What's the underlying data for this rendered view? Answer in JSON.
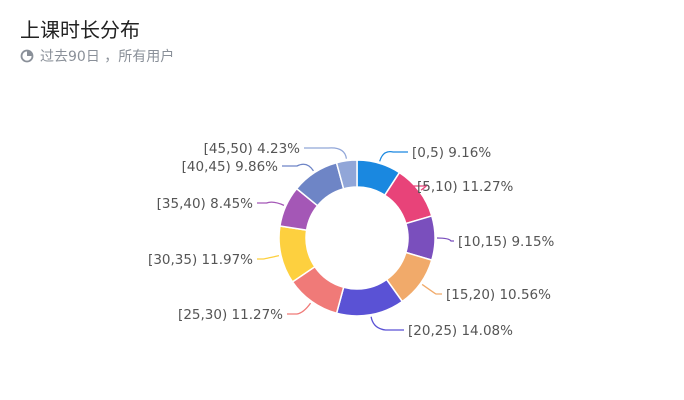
{
  "header": {
    "title": "上课时长分布",
    "subtitle": "过去90日 ，所有用户",
    "subtitle_icon": "pie-chart-icon"
  },
  "chart_data": {
    "type": "pie",
    "donut": true,
    "title": "上课时长分布",
    "categories": [
      "[0,5)",
      "[5,10)",
      "[10,15)",
      "[15,20)",
      "[20,25)",
      "[25,30)",
      "[30,35)",
      "[35,40)",
      "[40,45)",
      "[45,50)"
    ],
    "values": [
      9.16,
      11.27,
      9.15,
      10.56,
      14.08,
      11.27,
      11.97,
      8.45,
      9.86,
      4.23
    ],
    "labels": [
      "[0,5) 9.16%",
      "[5,10) 11.27%",
      "[10,15) 9.15%",
      "[15,20) 10.56%",
      "[20,25) 14.08%",
      "[25,30) 11.27%",
      "[30,35) 11.97%",
      "[35,40) 8.45%",
      "[40,45) 9.86%",
      "[45,50) 4.23%"
    ],
    "colors": [
      "#1a88e0",
      "#e84379",
      "#7a4fbd",
      "#f1aa6a",
      "#5a52d5",
      "#f07a78",
      "#fdd03f",
      "#a457b6",
      "#6e85c6",
      "#91a6d8"
    ],
    "legend": "none"
  }
}
